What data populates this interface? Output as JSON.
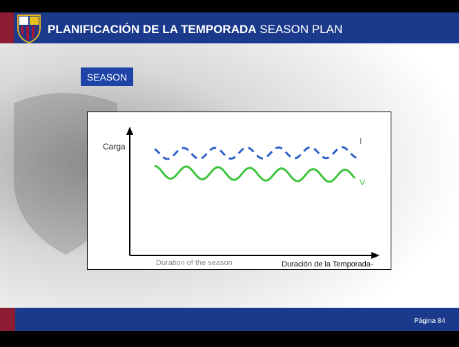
{
  "header": {
    "title_bold": "PLANIFICACIÓN DE LA TEMPORADA",
    "title_rest": "SEASON PLAN"
  },
  "badge": "SEASON",
  "diagram": {
    "y_axis_label": "Carga",
    "line_labels": [
      "I",
      "V"
    ],
    "x_axis_label_en": "Duration of the season",
    "x_axis_label_es": "Duración de la Temporada-"
  },
  "footer": {
    "page_label": "Página",
    "page_number": "84"
  }
}
